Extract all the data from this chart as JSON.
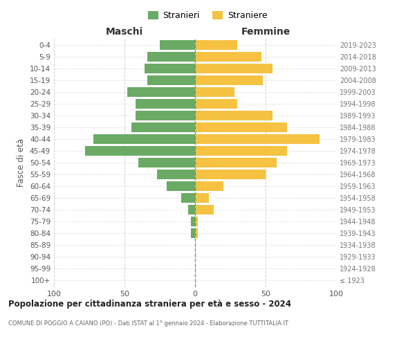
{
  "age_groups": [
    "100+",
    "95-99",
    "90-94",
    "85-89",
    "80-84",
    "75-79",
    "70-74",
    "65-69",
    "60-64",
    "55-59",
    "50-54",
    "45-49",
    "40-44",
    "35-39",
    "30-34",
    "25-29",
    "20-24",
    "15-19",
    "10-14",
    "5-9",
    "0-4"
  ],
  "birth_years": [
    "≤ 1923",
    "1924-1928",
    "1929-1933",
    "1934-1938",
    "1939-1943",
    "1944-1948",
    "1949-1953",
    "1954-1958",
    "1959-1963",
    "1964-1968",
    "1969-1973",
    "1974-1978",
    "1979-1983",
    "1984-1988",
    "1989-1993",
    "1994-1998",
    "1999-2003",
    "2004-2008",
    "2009-2013",
    "2014-2018",
    "2019-2023"
  ],
  "males": [
    0,
    0,
    0,
    0,
    3,
    3,
    5,
    10,
    20,
    27,
    40,
    78,
    72,
    45,
    42,
    42,
    48,
    34,
    36,
    34,
    25
  ],
  "females": [
    0,
    0,
    0,
    0,
    2,
    2,
    13,
    10,
    20,
    50,
    58,
    65,
    88,
    65,
    55,
    30,
    28,
    48,
    55,
    47,
    30
  ],
  "male_color": "#6aaa64",
  "female_color": "#f5c242",
  "title": "Popolazione per cittadinanza straniera per età e sesso - 2024",
  "subtitle": "COMUNE DI POGGIO A CAIANO (PO) - Dati ISTAT al 1° gennaio 2024 - Elaborazione TUTTITALIA.IT",
  "left_header": "Maschi",
  "right_header": "Femmine",
  "ylabel_left": "Fasce di età",
  "legend_male": "Stranieri",
  "legend_female": "Straniere",
  "xlim": 100,
  "background_color": "#ffffff",
  "grid_color": "#cccccc",
  "bar_height": 0.8
}
